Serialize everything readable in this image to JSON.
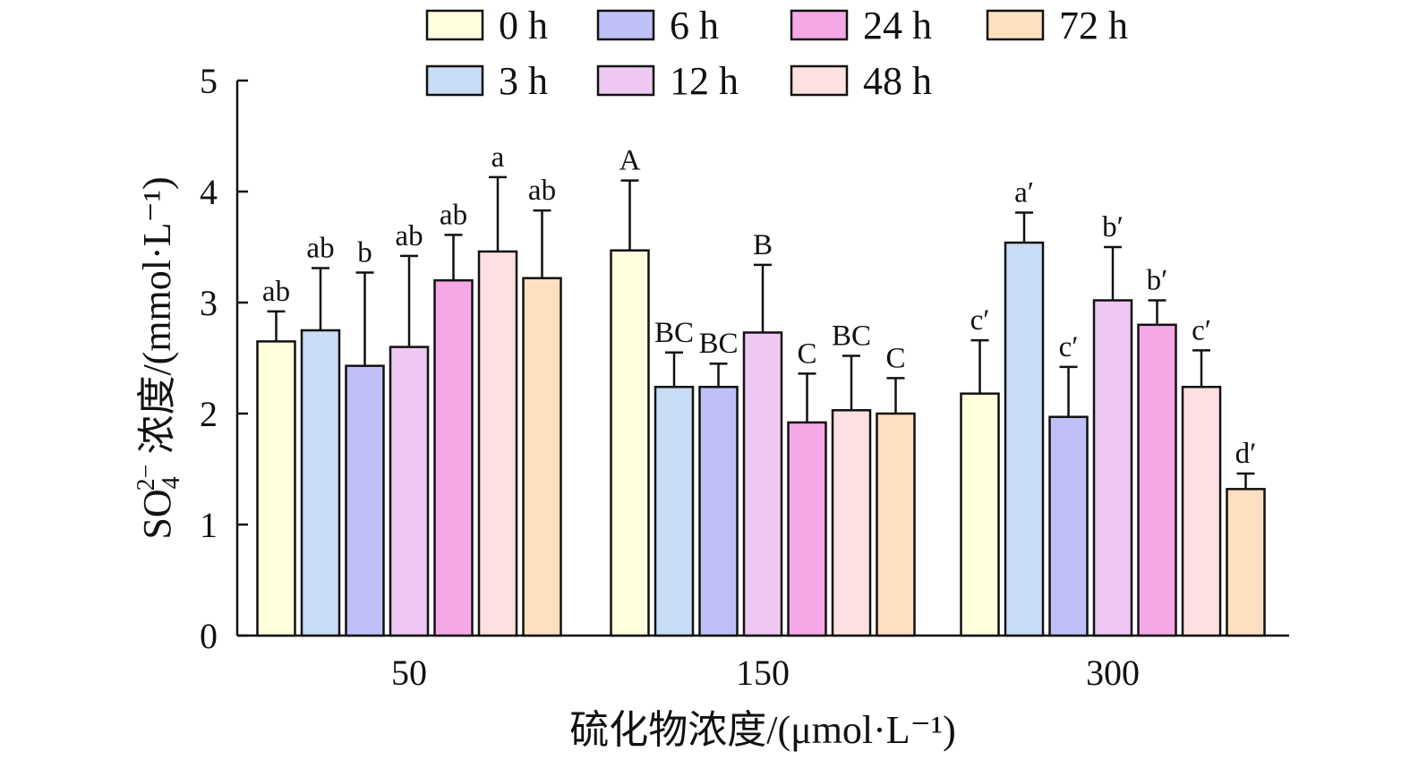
{
  "chart_data": {
    "type": "bar",
    "categories": [
      "50",
      "150",
      "300"
    ],
    "xlabel": "硫化物浓度/(μmol·L⁻¹)",
    "ylabel_parts": {
      "main": "SO",
      "sub": "4",
      "sup": "2−",
      "rest": " 浓度/(mmol·L⁻¹)"
    },
    "ylim": [
      0,
      5
    ],
    "yticks": [
      "0",
      "1",
      "2",
      "3",
      "4",
      "5"
    ],
    "grid": false,
    "legend_position": "top",
    "series": [
      {
        "name": "0 h",
        "color": "#FFFFDD",
        "values": [
          2.65,
          3.47,
          2.18
        ],
        "errors": [
          0.27,
          0.63,
          0.48
        ],
        "labels": [
          "ab",
          "A",
          "c′"
        ]
      },
      {
        "name": "3 h",
        "color": "#C8DCF5",
        "values": [
          2.75,
          2.24,
          3.54
        ],
        "errors": [
          0.56,
          0.31,
          0.27
        ],
        "labels": [
          "ab",
          "BC",
          "a′"
        ]
      },
      {
        "name": "6 h",
        "color": "#C0C0F8",
        "values": [
          2.43,
          2.24,
          1.97
        ],
        "errors": [
          0.84,
          0.21,
          0.45
        ],
        "labels": [
          "b",
          "BC",
          "c′"
        ]
      },
      {
        "name": "12 h",
        "color": "#EEC8F2",
        "values": [
          2.6,
          2.73,
          3.02
        ],
        "errors": [
          0.82,
          0.61,
          0.48
        ],
        "labels": [
          "ab",
          "B",
          "b′"
        ]
      },
      {
        "name": "24 h",
        "color": "#F4A8E6",
        "values": [
          3.2,
          1.92,
          2.8
        ],
        "errors": [
          0.41,
          0.44,
          0.22
        ],
        "labels": [
          "ab",
          "C",
          "b′"
        ]
      },
      {
        "name": "48 h",
        "color": "#FDE0E2",
        "values": [
          3.46,
          2.03,
          2.24
        ],
        "errors": [
          0.67,
          0.49,
          0.33
        ],
        "labels": [
          "a",
          "BC",
          "c′"
        ]
      },
      {
        "name": "72 h",
        "color": "#FDE0C0",
        "values": [
          3.22,
          2.0,
          1.32
        ],
        "errors": [
          0.61,
          0.32,
          0.14
        ],
        "labels": [
          "ab",
          "C",
          "d′"
        ]
      }
    ],
    "legend_rows": [
      [
        "0 h",
        "6 h",
        "24 h",
        "72 h"
      ],
      [
        "3 h",
        "12 h",
        "48 h"
      ]
    ]
  }
}
